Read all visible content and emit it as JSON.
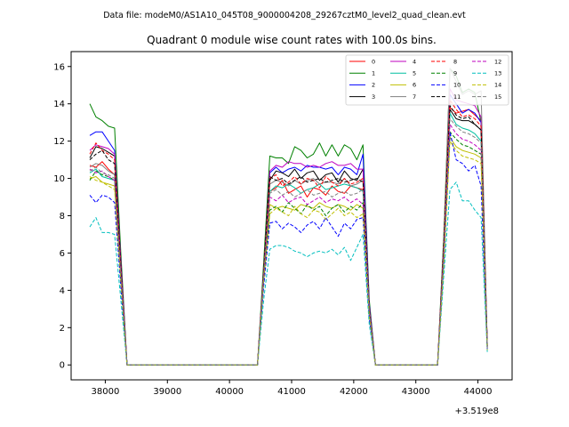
{
  "chart_data": {
    "type": "line",
    "suptitle": "Data file: modeM0/AS1A10_045T08_9000004208_29267cztM0_level2_quad_clean.evt",
    "title": "Quadrant 0 module wise count rates with 100.0s bins.",
    "xlabel": "",
    "ylabel": "",
    "x_offset_label": "+3.519e8",
    "xlim": [
      37450,
      44550
    ],
    "ylim": [
      -0.8,
      16.8
    ],
    "xticks": [
      38000,
      39000,
      40000,
      41000,
      42000,
      43000,
      44000
    ],
    "xtick_labels": [
      "38000",
      "39000",
      "40000",
      "41000",
      "42000",
      "43000",
      "44000"
    ],
    "yticks": [
      0,
      2,
      4,
      6,
      8,
      10,
      12,
      14,
      16
    ],
    "ytick_labels": [
      "0",
      "2",
      "4",
      "6",
      "8",
      "10",
      "12",
      "14",
      "16"
    ],
    "grid": false,
    "legend": {
      "location": "top-right",
      "ncol": 4,
      "entries": [
        "0",
        "1",
        "2",
        "3",
        "4",
        "5",
        "6",
        "7",
        "8",
        "9",
        "10",
        "11",
        "12",
        "13",
        "14",
        "15"
      ]
    },
    "x": [
      37750,
      37850,
      37950,
      38050,
      38150,
      38250,
      38350,
      38450,
      40450,
      40550,
      40650,
      40750,
      40850,
      40950,
      41050,
      41150,
      41250,
      41350,
      41450,
      41550,
      41650,
      41750,
      41850,
      41950,
      42050,
      42150,
      42250,
      42350,
      43350,
      43450,
      43550,
      43650,
      43750,
      43850,
      43950,
      44050,
      44150
    ],
    "series": [
      {
        "name": "0",
        "color": "#ff0000",
        "style": "solid",
        "values": [
          10.7,
          10.6,
          10.9,
          10.5,
          10.2,
          5.0,
          0,
          0,
          0,
          5.0,
          9.3,
          9.5,
          9.9,
          9.2,
          9.4,
          9.6,
          9.0,
          9.5,
          9.4,
          9.1,
          9.6,
          9.3,
          9.2,
          9.6,
          9.5,
          9.4,
          3.0,
          0,
          0,
          6.0,
          13.8,
          13.5,
          13.6,
          13.7,
          13.4,
          13.1,
          1.0
        ]
      },
      {
        "name": "1",
        "color": "#008000",
        "style": "solid",
        "values": [
          14.0,
          13.3,
          13.1,
          12.8,
          12.7,
          6.0,
          0,
          0,
          0,
          5.5,
          11.2,
          11.1,
          11.1,
          10.8,
          11.7,
          11.5,
          11.1,
          11.3,
          11.9,
          11.2,
          11.8,
          11.2,
          11.8,
          11.6,
          11.0,
          11.8,
          3.5,
          0,
          0,
          7.0,
          15.9,
          15.5,
          14.6,
          14.8,
          14.6,
          13.0,
          1.0
        ]
      },
      {
        "name": "2",
        "color": "#0000ff",
        "style": "solid",
        "values": [
          12.3,
          12.5,
          12.5,
          12.0,
          11.5,
          5.5,
          0,
          0,
          0,
          5.0,
          10.3,
          10.6,
          10.3,
          10.5,
          10.6,
          10.4,
          10.7,
          10.6,
          10.6,
          10.5,
          10.6,
          10.2,
          10.6,
          10.5,
          10.2,
          11.3,
          3.3,
          0,
          0,
          6.5,
          14.5,
          14.0,
          13.5,
          13.7,
          13.5,
          13.0,
          1.0
        ]
      },
      {
        "name": "3",
        "color": "#000000",
        "style": "solid",
        "values": [
          11.1,
          11.7,
          11.6,
          11.4,
          11.2,
          5.5,
          0,
          0,
          0,
          5.0,
          9.9,
          10.4,
          10.3,
          10.1,
          10.5,
          10.0,
          10.3,
          10.4,
          9.9,
          10.2,
          10.3,
          9.8,
          10.4,
          10.0,
          9.9,
          10.5,
          3.2,
          0,
          0,
          6.3,
          13.7,
          13.2,
          13.1,
          13.1,
          12.9,
          12.6,
          1.0
        ]
      },
      {
        "name": "4",
        "color": "#bf00bf",
        "style": "solid",
        "values": [
          11.5,
          11.8,
          11.7,
          11.6,
          11.3,
          5.5,
          0,
          0,
          0,
          5.0,
          10.4,
          10.7,
          10.6,
          10.9,
          10.8,
          10.8,
          10.6,
          10.7,
          10.6,
          10.8,
          10.9,
          10.7,
          10.7,
          10.8,
          10.5,
          10.5,
          3.2,
          0,
          0,
          6.5,
          14.8,
          14.2,
          14.1,
          14.0,
          13.9,
          13.3,
          1.0
        ]
      },
      {
        "name": "5",
        "color": "#00bfa0",
        "style": "solid",
        "values": [
          10.3,
          10.5,
          10.1,
          10.0,
          9.9,
          4.5,
          0,
          0,
          0,
          4.5,
          9.3,
          9.6,
          9.5,
          9.7,
          9.5,
          9.2,
          9.4,
          9.5,
          9.7,
          9.4,
          9.5,
          9.6,
          9.7,
          9.6,
          9.5,
          9.3,
          3.0,
          0,
          0,
          6.0,
          13.5,
          12.9,
          12.7,
          12.6,
          12.4,
          12.0,
          0.9
        ]
      },
      {
        "name": "6",
        "color": "#bfbf00",
        "style": "solid",
        "values": [
          10.0,
          10.1,
          9.8,
          9.7,
          9.6,
          4.5,
          0,
          0,
          0,
          4.5,
          8.6,
          8.4,
          8.5,
          8.4,
          8.3,
          8.6,
          8.5,
          8.4,
          8.7,
          8.5,
          8.4,
          8.6,
          8.5,
          8.3,
          8.6,
          8.4,
          2.8,
          0,
          0,
          5.5,
          12.2,
          11.7,
          11.5,
          11.4,
          11.3,
          11.1,
          0.9
        ]
      },
      {
        "name": "7",
        "color": "#7f7f7f",
        "style": "solid",
        "values": [
          10.6,
          10.8,
          10.7,
          10.4,
          10.2,
          5.0,
          0,
          0,
          0,
          5.0,
          9.7,
          9.9,
          9.8,
          9.6,
          9.9,
          9.7,
          9.9,
          10.0,
          9.7,
          9.8,
          9.8,
          9.7,
          10.0,
          9.6,
          9.7,
          9.9,
          3.0,
          0,
          0,
          6.8,
          15.9,
          15.2,
          14.5,
          14.7,
          14.5,
          14.7,
          1.0
        ]
      },
      {
        "name": "8",
        "color": "#ff0000",
        "style": "dashed",
        "values": [
          11.3,
          11.9,
          11.5,
          11.3,
          11.0,
          5.2,
          0,
          0,
          0,
          5.0,
          10.0,
          10.2,
          9.6,
          9.8,
          10.1,
          9.7,
          10.0,
          9.9,
          9.5,
          10.1,
          9.8,
          9.6,
          10.0,
          9.7,
          9.8,
          10.0,
          3.0,
          0,
          0,
          6.5,
          14.2,
          13.7,
          13.3,
          13.4,
          13.2,
          12.8,
          1.0
        ]
      },
      {
        "name": "9",
        "color": "#008000",
        "style": "dashed",
        "values": [
          9.9,
          10.4,
          10.2,
          10.1,
          9.9,
          4.8,
          0,
          0,
          0,
          4.5,
          8.3,
          8.5,
          8.2,
          8.7,
          8.4,
          8.1,
          8.6,
          8.3,
          8.5,
          8.0,
          8.4,
          8.6,
          8.2,
          8.5,
          8.3,
          8.7,
          2.8,
          0,
          0,
          5.8,
          12.5,
          12.1,
          11.8,
          11.7,
          11.5,
          11.3,
          0.9
        ]
      },
      {
        "name": "10",
        "color": "#0000ff",
        "style": "dashed",
        "values": [
          9.1,
          8.7,
          9.1,
          9.0,
          8.7,
          4.2,
          0,
          0,
          0,
          4.2,
          7.6,
          7.7,
          7.3,
          7.6,
          7.4,
          7.1,
          7.5,
          7.7,
          7.3,
          7.9,
          7.4,
          6.9,
          7.6,
          7.3,
          7.8,
          7.9,
          2.5,
          0,
          0,
          5.5,
          12.5,
          11.0,
          10.8,
          10.4,
          10.7,
          9.6,
          0.8
        ]
      },
      {
        "name": "11",
        "color": "#000000",
        "style": "dashed",
        "values": [
          11.0,
          11.3,
          11.5,
          11.0,
          10.8,
          5.2,
          0,
          0,
          0,
          5.0,
          10.1,
          9.9,
          10.0,
          9.7,
          9.9,
          10.1,
          9.8,
          9.9,
          10.0,
          9.8,
          9.9,
          10.0,
          9.8,
          9.9,
          10.0,
          9.8,
          3.0,
          0,
          0,
          6.5,
          13.9,
          13.4,
          13.2,
          13.3,
          12.9,
          12.6,
          1.0
        ]
      },
      {
        "name": "12",
        "color": "#bf00bf",
        "style": "dashed",
        "values": [
          10.5,
          10.3,
          10.4,
          10.1,
          9.9,
          4.8,
          0,
          0,
          0,
          4.8,
          9.0,
          8.8,
          9.1,
          8.7,
          8.9,
          9.0,
          8.6,
          8.8,
          9.0,
          8.7,
          8.9,
          8.8,
          9.0,
          8.7,
          8.9,
          8.6,
          2.8,
          0,
          0,
          6.0,
          12.9,
          12.4,
          12.1,
          12.0,
          11.8,
          11.5,
          0.9
        ]
      },
      {
        "name": "13",
        "color": "#00bfbf",
        "style": "dashed",
        "values": [
          7.4,
          7.9,
          7.1,
          7.1,
          7.0,
          3.5,
          0,
          0,
          0,
          3.5,
          6.2,
          6.4,
          6.4,
          6.3,
          6.1,
          6.0,
          5.8,
          6.0,
          6.1,
          6.0,
          6.2,
          5.9,
          6.3,
          5.6,
          6.3,
          7.0,
          2.2,
          0,
          0,
          4.8,
          9.4,
          9.8,
          8.8,
          8.8,
          8.3,
          7.9,
          0.7
        ]
      },
      {
        "name": "14",
        "color": "#bfbf00",
        "style": "dashed",
        "values": [
          10.1,
          9.9,
          9.8,
          9.6,
          9.4,
          4.5,
          0,
          0,
          0,
          4.5,
          8.1,
          8.4,
          8.2,
          8.0,
          8.5,
          8.1,
          7.9,
          8.3,
          8.2,
          7.8,
          8.1,
          8.4,
          8.0,
          8.2,
          7.9,
          8.1,
          2.7,
          0,
          0,
          5.5,
          12.0,
          11.5,
          11.2,
          11.1,
          11.0,
          10.8,
          0.8
        ]
      },
      {
        "name": "15",
        "color": "#7f7f7f",
        "style": "dashed",
        "values": [
          10.4,
          10.6,
          10.3,
          10.2,
          10.0,
          4.9,
          0,
          0,
          0,
          4.8,
          9.2,
          9.4,
          9.1,
          9.3,
          9.0,
          9.2,
          9.4,
          9.1,
          9.2,
          9.3,
          9.0,
          9.2,
          9.3,
          9.1,
          9.2,
          9.4,
          2.9,
          0,
          0,
          6.0,
          13.2,
          12.8,
          12.5,
          12.4,
          12.2,
          11.9,
          0.9
        ]
      }
    ]
  }
}
